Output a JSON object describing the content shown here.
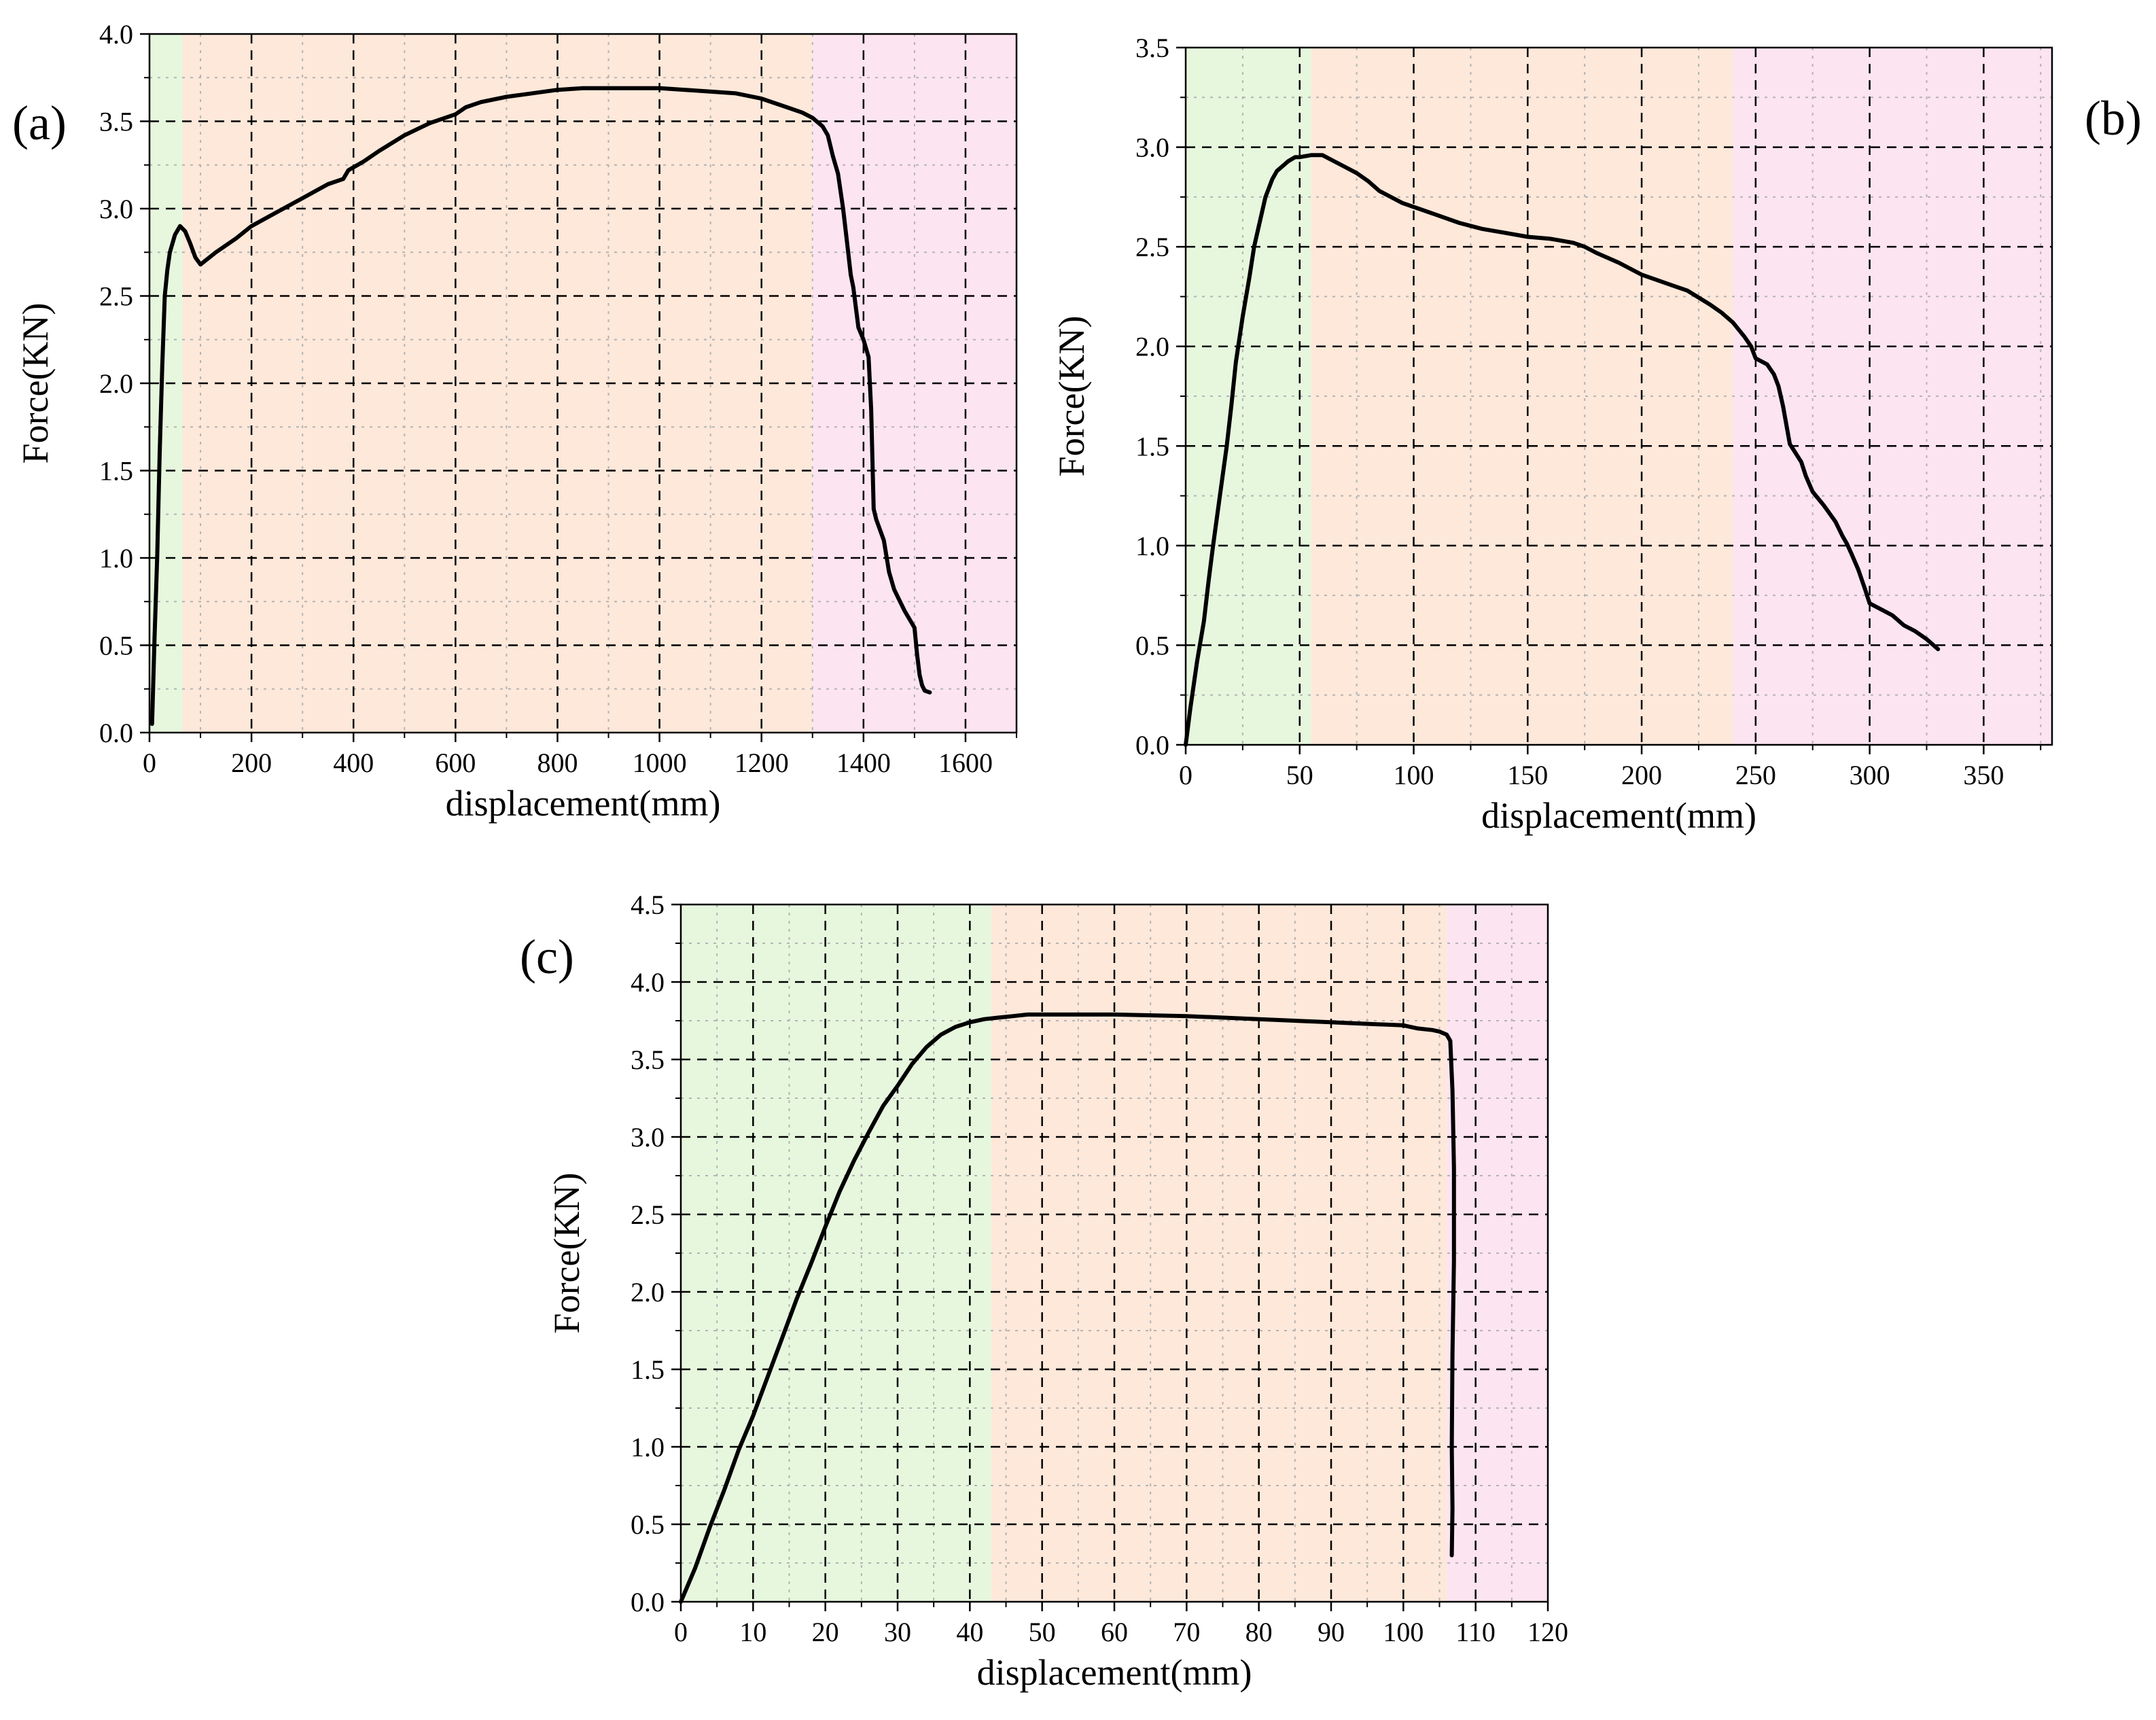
{
  "colors": {
    "zone_elastic": "#e6f7de",
    "zone_plastic": "#fde8da",
    "zone_failure": "#fce4f1",
    "curve": "#000000",
    "major_grid": "#000000",
    "minor_grid": "#b3b3b3"
  },
  "chart_data": [
    {
      "panel_label": "(a)",
      "type": "line",
      "xlabel": "displacement(mm)",
      "ylabel": "Force(KN)",
      "xlim": [
        0,
        1700
      ],
      "ylim": [
        0,
        4.0
      ],
      "xticks": [
        0,
        200,
        400,
        600,
        800,
        1000,
        1200,
        1400,
        1600
      ],
      "yticks": [
        0.0,
        0.5,
        1.0,
        1.5,
        2.0,
        2.5,
        3.0,
        3.5,
        4.0
      ],
      "xtick_labels": [
        "0",
        "200",
        "400",
        "600",
        "800",
        "1000",
        "1200",
        "1400",
        "1600"
      ],
      "ytick_labels": [
        "0.0",
        "0.5",
        "1.0",
        "1.5",
        "2.0",
        "2.5",
        "3.0",
        "3.5",
        "4.0"
      ],
      "zones": [
        {
          "stage": "elastic",
          "x": [
            0,
            65
          ]
        },
        {
          "stage": "plastic",
          "x": [
            65,
            1300
          ]
        },
        {
          "stage": "failure",
          "x": [
            1300,
            1700
          ]
        }
      ],
      "series": [
        {
          "x": [
            5,
            10,
            15,
            20,
            25,
            30,
            35,
            40,
            50,
            60,
            70,
            80,
            90,
            100,
            130,
            170,
            200,
            250,
            300,
            350,
            380,
            390,
            420,
            450,
            500,
            550,
            600,
            620,
            650,
            700,
            800,
            850,
            900,
            950,
            1000,
            1050,
            1100,
            1150,
            1200,
            1250,
            1280,
            1300,
            1320,
            1330,
            1340,
            1350,
            1360,
            1370,
            1375,
            1380,
            1390,
            1400,
            1410,
            1415,
            1420,
            1425,
            1440,
            1450,
            1460,
            1480,
            1500,
            1505,
            1510,
            1515,
            1520,
            1530
          ],
          "y": [
            0.05,
            0.55,
            1.0,
            1.6,
            2.1,
            2.5,
            2.65,
            2.75,
            2.85,
            2.9,
            2.87,
            2.8,
            2.72,
            2.68,
            2.75,
            2.83,
            2.9,
            2.98,
            3.06,
            3.14,
            3.17,
            3.22,
            3.27,
            3.33,
            3.42,
            3.49,
            3.54,
            3.58,
            3.61,
            3.64,
            3.68,
            3.69,
            3.69,
            3.69,
            3.69,
            3.68,
            3.67,
            3.66,
            3.63,
            3.58,
            3.55,
            3.52,
            3.47,
            3.42,
            3.3,
            3.2,
            3.0,
            2.75,
            2.62,
            2.55,
            2.32,
            2.25,
            2.15,
            1.85,
            1.28,
            1.22,
            1.1,
            0.92,
            0.82,
            0.7,
            0.6,
            0.45,
            0.33,
            0.27,
            0.24,
            0.23
          ]
        }
      ]
    },
    {
      "panel_label": "(b)",
      "type": "line",
      "xlabel": "displacement(mm)",
      "ylabel": "Force(KN)",
      "xlim": [
        0,
        380
      ],
      "ylim": [
        0,
        3.5
      ],
      "xticks": [
        0,
        50,
        100,
        150,
        200,
        250,
        300,
        350
      ],
      "yticks": [
        0.0,
        0.5,
        1.0,
        1.5,
        2.0,
        2.5,
        3.0,
        3.5
      ],
      "xtick_labels": [
        "0",
        "50",
        "100",
        "150",
        "200",
        "250",
        "300",
        "350"
      ],
      "ytick_labels": [
        "0.0",
        "0.5",
        "1.0",
        "1.5",
        "2.0",
        "2.5",
        "3.0",
        "3.5"
      ],
      "zones": [
        {
          "stage": "elastic",
          "x": [
            0,
            55
          ]
        },
        {
          "stage": "plastic",
          "x": [
            55,
            240
          ]
        },
        {
          "stage": "failure",
          "x": [
            240,
            380
          ]
        }
      ],
      "series": [
        {
          "x": [
            0,
            2,
            5,
            8,
            10,
            12,
            15,
            18,
            20,
            22,
            25,
            28,
            30,
            33,
            35,
            38,
            40,
            42,
            45,
            48,
            50,
            55,
            60,
            65,
            70,
            75,
            80,
            85,
            90,
            95,
            100,
            110,
            120,
            130,
            140,
            150,
            160,
            165,
            170,
            175,
            180,
            190,
            200,
            210,
            215,
            220,
            230,
            235,
            240,
            245,
            248,
            250,
            255,
            258,
            260,
            262,
            265,
            270,
            272,
            275,
            280,
            285,
            288,
            290,
            292,
            295,
            298,
            300,
            305,
            310,
            315,
            320,
            325,
            330
          ],
          "y": [
            0.0,
            0.18,
            0.42,
            0.62,
            0.82,
            1.0,
            1.25,
            1.5,
            1.7,
            1.92,
            2.15,
            2.35,
            2.5,
            2.65,
            2.75,
            2.84,
            2.88,
            2.9,
            2.93,
            2.95,
            2.95,
            2.96,
            2.96,
            2.93,
            2.9,
            2.87,
            2.83,
            2.78,
            2.75,
            2.72,
            2.7,
            2.66,
            2.62,
            2.59,
            2.57,
            2.55,
            2.54,
            2.53,
            2.52,
            2.5,
            2.47,
            2.42,
            2.36,
            2.32,
            2.3,
            2.28,
            2.21,
            2.17,
            2.12,
            2.05,
            2.0,
            1.94,
            1.91,
            1.86,
            1.8,
            1.7,
            1.51,
            1.42,
            1.35,
            1.27,
            1.2,
            1.12,
            1.05,
            1.01,
            0.96,
            0.88,
            0.78,
            0.71,
            0.68,
            0.65,
            0.6,
            0.57,
            0.53,
            0.48
          ]
        }
      ]
    },
    {
      "panel_label": "(c)",
      "type": "line",
      "xlabel": "displacement(mm)",
      "ylabel": "Force(KN)",
      "xlim": [
        0,
        120
      ],
      "ylim": [
        0,
        4.5
      ],
      "xticks": [
        0,
        10,
        20,
        30,
        40,
        50,
        60,
        70,
        80,
        90,
        100,
        110,
        120
      ],
      "yticks": [
        0.0,
        0.5,
        1.0,
        1.5,
        2.0,
        2.5,
        3.0,
        3.5,
        4.0,
        4.5
      ],
      "xtick_labels": [
        "0",
        "10",
        "20",
        "30",
        "40",
        "50",
        "60",
        "70",
        "80",
        "90",
        "100",
        "110",
        "120"
      ],
      "ytick_labels": [
        "0.0",
        "0.5",
        "1.0",
        "1.5",
        "2.0",
        "2.5",
        "3.0",
        "3.5",
        "4.0",
        "4.5"
      ],
      "zones": [
        {
          "stage": "elastic",
          "x": [
            0,
            43
          ]
        },
        {
          "stage": "plastic",
          "x": [
            43,
            106
          ]
        },
        {
          "stage": "failure",
          "x": [
            106,
            120
          ]
        }
      ],
      "series": [
        {
          "x": [
            0,
            2,
            4,
            6,
            8,
            10,
            12,
            14,
            16,
            18,
            20,
            22,
            24,
            26,
            28,
            30,
            32,
            34,
            36,
            38,
            40,
            42,
            44,
            46,
            48,
            50,
            55,
            60,
            70,
            80,
            90,
            95,
            100,
            102,
            104,
            105,
            106,
            106.5,
            106.8,
            107,
            107,
            106.8,
            106.7,
            106.8,
            106.7
          ],
          "y": [
            0.0,
            0.22,
            0.48,
            0.72,
            0.98,
            1.2,
            1.45,
            1.7,
            1.95,
            2.18,
            2.42,
            2.65,
            2.85,
            3.03,
            3.2,
            3.33,
            3.47,
            3.58,
            3.66,
            3.71,
            3.74,
            3.76,
            3.77,
            3.78,
            3.79,
            3.79,
            3.79,
            3.79,
            3.78,
            3.76,
            3.74,
            3.73,
            3.72,
            3.7,
            3.69,
            3.68,
            3.66,
            3.62,
            3.3,
            2.8,
            2.2,
            1.6,
            1.0,
            0.6,
            0.3
          ]
        }
      ]
    }
  ]
}
